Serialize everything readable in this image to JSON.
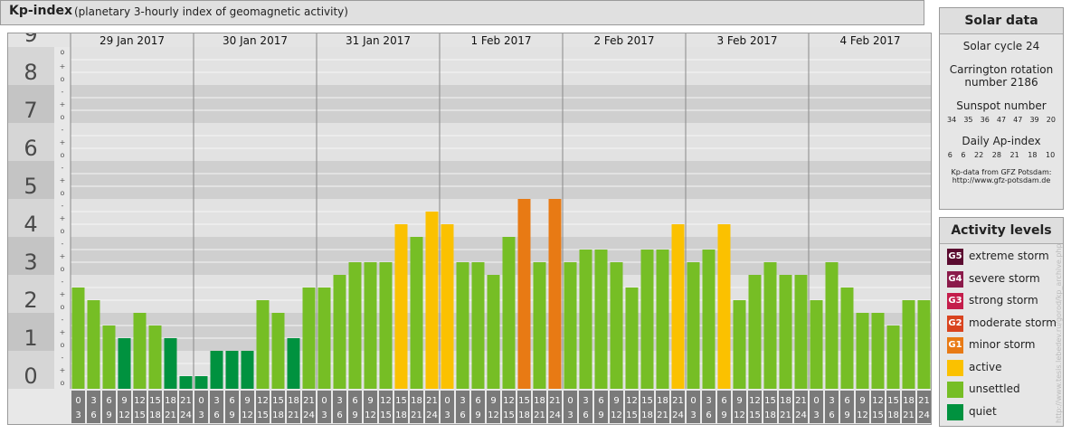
{
  "header": {
    "title": "Kp-index",
    "subtitle": "(planetary 3-hourly index of geomagnetic activity)"
  },
  "chart_data": {
    "type": "bar",
    "y_ticks": [
      "0",
      "1",
      "2",
      "3",
      "4",
      "5",
      "6",
      "7",
      "8",
      "9"
    ],
    "sub_tick_marks": [
      "o",
      "+",
      "-"
    ],
    "dates": [
      "29 Jan 2017",
      "30 Jan 2017",
      "31 Jan 2017",
      "1 Feb 2017",
      "2 Feb 2017",
      "3 Feb 2017",
      "4 Feb 2017"
    ],
    "hour_start": [
      "0",
      "3",
      "6",
      "9",
      "12",
      "15",
      "18",
      "21"
    ],
    "hour_end": [
      "3",
      "6",
      "9",
      "12",
      "15",
      "18",
      "21",
      "24"
    ],
    "ylim": [
      0,
      9
    ],
    "values": [
      [
        2.667,
        2.333,
        1.667,
        1.333,
        2.0,
        1.667,
        1.333,
        0.333
      ],
      [
        0.333,
        1.0,
        1.0,
        1.0,
        2.333,
        2.0,
        1.333,
        2.667
      ],
      [
        2.667,
        3.0,
        3.333,
        3.333,
        3.333,
        4.333,
        4.0,
        4.667
      ],
      [
        4.333,
        3.333,
        3.333,
        3.0,
        4.0,
        5.0,
        3.333,
        5.0
      ],
      [
        3.333,
        3.667,
        3.667,
        3.333,
        2.667,
        3.667,
        3.667,
        4.333
      ],
      [
        3.333,
        3.667,
        4.333,
        2.333,
        3.0,
        3.333,
        3.0,
        3.0
      ],
      [
        2.333,
        3.333,
        2.667,
        2.0,
        2.0,
        1.667,
        2.333,
        2.333
      ]
    ],
    "color_scale": [
      {
        "max": 1.5,
        "level": "quiet",
        "color": "#00923f"
      },
      {
        "max": 4.0,
        "level": "unsettled",
        "color": "#76be25"
      },
      {
        "max": 4.7,
        "level": "active",
        "color": "#fbc100"
      },
      {
        "max": 5.7,
        "level": "minor storm",
        "color": "#e87a14"
      },
      {
        "max": 6.7,
        "level": "moderate storm",
        "color": "#d9441f"
      },
      {
        "max": 7.7,
        "level": "strong storm",
        "color": "#c41d4b"
      },
      {
        "max": 8.7,
        "level": "severe storm",
        "color": "#8b1a4a"
      },
      {
        "max": 9.1,
        "level": "extreme storm",
        "color": "#5b0b30"
      }
    ]
  },
  "solar": {
    "title": "Solar data",
    "cycle": "Solar cycle 24",
    "carrington_line1": "Carrington rotation",
    "carrington_line2": "number 2186",
    "sunspot_title": "Sunspot number",
    "sunspot_values": [
      "34",
      "35",
      "36",
      "47",
      "47",
      "39",
      "20"
    ],
    "ap_title": "Daily Ap-index",
    "ap_values": [
      "6",
      "6",
      "22",
      "28",
      "21",
      "18",
      "10"
    ],
    "source_line1": "Kp-data from GFZ Potsdam:",
    "source_line2": "http://www.gfz-potsdam.de"
  },
  "activity": {
    "title": "Activity levels",
    "levels": [
      {
        "badge": "G5",
        "label": "extreme storm",
        "color": "#5b0b30"
      },
      {
        "badge": "G4",
        "label": "severe storm",
        "color": "#8b1a4a"
      },
      {
        "badge": "G3",
        "label": "strong storm",
        "color": "#c41d4b"
      },
      {
        "badge": "G2",
        "label": "moderate storm",
        "color": "#d9441f"
      },
      {
        "badge": "G1",
        "label": "minor storm",
        "color": "#e87a14"
      },
      {
        "badge": "",
        "label": "active",
        "color": "#fbc100"
      },
      {
        "badge": "",
        "label": "unsettled",
        "color": "#76be25"
      },
      {
        "badge": "",
        "label": "quiet",
        "color": "#00923f"
      }
    ]
  },
  "watermark": "http://www.tesis.lebedev.ru/gorod/kp_archive.php"
}
